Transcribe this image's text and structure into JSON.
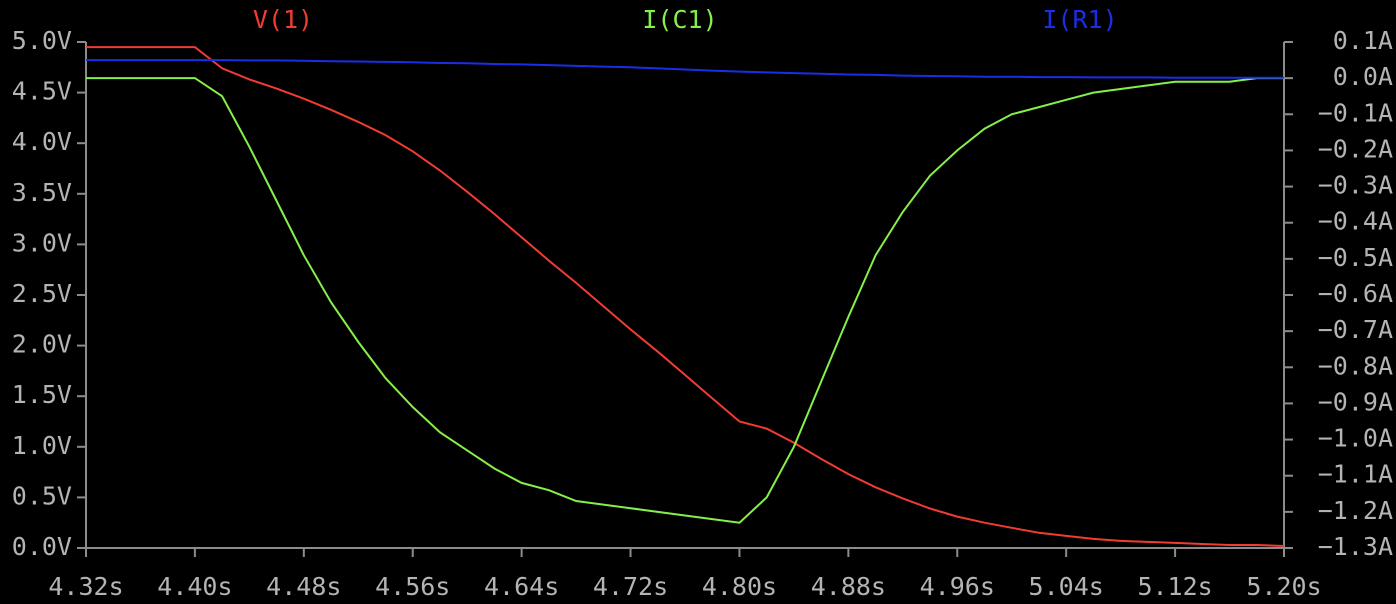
{
  "chart_data": {
    "type": "line",
    "x": [
      4.32,
      4.34,
      4.36,
      4.38,
      4.4,
      4.42,
      4.44,
      4.46,
      4.48,
      4.5,
      4.52,
      4.54,
      4.56,
      4.58,
      4.6,
      4.62,
      4.64,
      4.66,
      4.68,
      4.7,
      4.72,
      4.74,
      4.76,
      4.78,
      4.8,
      4.82,
      4.84,
      4.86,
      4.88,
      4.9,
      4.92,
      4.94,
      4.96,
      4.98,
      5.0,
      5.02,
      5.04,
      5.06,
      5.08,
      5.1,
      5.12,
      5.14,
      5.16,
      5.18,
      5.2
    ],
    "series": [
      {
        "name": "V(1)",
        "color": "#f03c32",
        "values": [
          4.95,
          4.95,
          4.95,
          4.95,
          4.95,
          4.74,
          4.63,
          4.54,
          4.44,
          4.33,
          4.21,
          4.08,
          3.92,
          3.73,
          3.52,
          3.3,
          3.07,
          2.84,
          2.62,
          2.39,
          2.16,
          1.94,
          1.71,
          1.48,
          1.25,
          1.18,
          1.04,
          0.88,
          0.73,
          0.6,
          0.49,
          0.39,
          0.31,
          0.25,
          0.2,
          0.15,
          0.12,
          0.09,
          0.07,
          0.06,
          0.05,
          0.04,
          0.03,
          0.03,
          0.02
        ]
      },
      {
        "name": "I(C1)",
        "color": "#86f04a",
        "axis": "y2",
        "values": [
          0,
          0,
          0,
          0,
          0,
          -0.05,
          -0.19,
          -0.34,
          -0.49,
          -0.62,
          -0.73,
          -0.83,
          -0.91,
          -0.98,
          -1.03,
          -1.08,
          -1.12,
          -1.14,
          -1.17,
          -1.18,
          -1.19,
          -1.2,
          -1.21,
          -1.22,
          -1.23,
          -1.16,
          -1.02,
          -0.84,
          -0.66,
          -0.49,
          -0.37,
          -0.27,
          -0.2,
          -0.14,
          -0.1,
          -0.08,
          -0.06,
          -0.04,
          -0.03,
          -0.02,
          -0.01,
          -0.01,
          -0.01,
          0,
          0
        ]
      },
      {
        "name": "I(R1)",
        "color": "#1a2ee6",
        "axis": "y2",
        "values": [
          0.05,
          0.05,
          0.05,
          0.05,
          0.05,
          0.05,
          0.049,
          0.049,
          0.048,
          0.047,
          0.046,
          0.045,
          0.044,
          0.042,
          0.041,
          0.039,
          0.038,
          0.036,
          0.034,
          0.032,
          0.03,
          0.027,
          0.024,
          0.021,
          0.018,
          0.016,
          0.014,
          0.012,
          0.01,
          0.009,
          0.007,
          0.006,
          0.005,
          0.004,
          0.004,
          0.003,
          0.003,
          0.002,
          0.002,
          0.002,
          0.001,
          0.001,
          0.001,
          0.001,
          0.001
        ]
      }
    ],
    "xlim": [
      4.32,
      5.2
    ],
    "xticks": [
      {
        "value": 4.32,
        "label": "4.32s"
      },
      {
        "value": 4.4,
        "label": "4.40s"
      },
      {
        "value": 4.48,
        "label": "4.48s"
      },
      {
        "value": 4.56,
        "label": "4.56s"
      },
      {
        "value": 4.64,
        "label": "4.64s"
      },
      {
        "value": 4.72,
        "label": "4.72s"
      },
      {
        "value": 4.8,
        "label": "4.80s"
      },
      {
        "value": 4.88,
        "label": "4.88s"
      },
      {
        "value": 4.96,
        "label": "4.96s"
      },
      {
        "value": 5.04,
        "label": "5.04s"
      },
      {
        "value": 5.12,
        "label": "5.12s"
      },
      {
        "value": 5.2,
        "label": "5.20s"
      }
    ],
    "ylim": [
      0,
      5
    ],
    "yticks": [
      {
        "value": 0,
        "label": "0.0V"
      },
      {
        "value": 0.5,
        "label": "0.5V"
      },
      {
        "value": 1,
        "label": "1.0V"
      },
      {
        "value": 1.5,
        "label": "1.5V"
      },
      {
        "value": 2,
        "label": "2.0V"
      },
      {
        "value": 2.5,
        "label": "2.5V"
      },
      {
        "value": 3,
        "label": "3.0V"
      },
      {
        "value": 3.5,
        "label": "3.5V"
      },
      {
        "value": 4,
        "label": "4.0V"
      },
      {
        "value": 4.5,
        "label": "4.5V"
      },
      {
        "value": 5,
        "label": "5.0V"
      }
    ],
    "y2lim": [
      -1.3,
      0.1
    ],
    "y2ticks": [
      {
        "value": 0.1,
        "label": "0.1A"
      },
      {
        "value": 0,
        "label": "0.0A"
      },
      {
        "value": -0.1,
        "label": "−0.1A"
      },
      {
        "value": -0.2,
        "label": "−0.2A"
      },
      {
        "value": -0.3,
        "label": "−0.3A"
      },
      {
        "value": -0.4,
        "label": "−0.4A"
      },
      {
        "value": -0.5,
        "label": "−0.5A"
      },
      {
        "value": -0.6,
        "label": "−0.6A"
      },
      {
        "value": -0.7,
        "label": "−0.7A"
      },
      {
        "value": -0.8,
        "label": "−0.8A"
      },
      {
        "value": -0.9,
        "label": "−0.9A"
      },
      {
        "value": -1.0,
        "label": "−1.0A"
      },
      {
        "value": -1.1,
        "label": "−1.1A"
      },
      {
        "value": -1.2,
        "label": "−1.2A"
      },
      {
        "value": -1.3,
        "label": "−1.3A"
      }
    ]
  }
}
